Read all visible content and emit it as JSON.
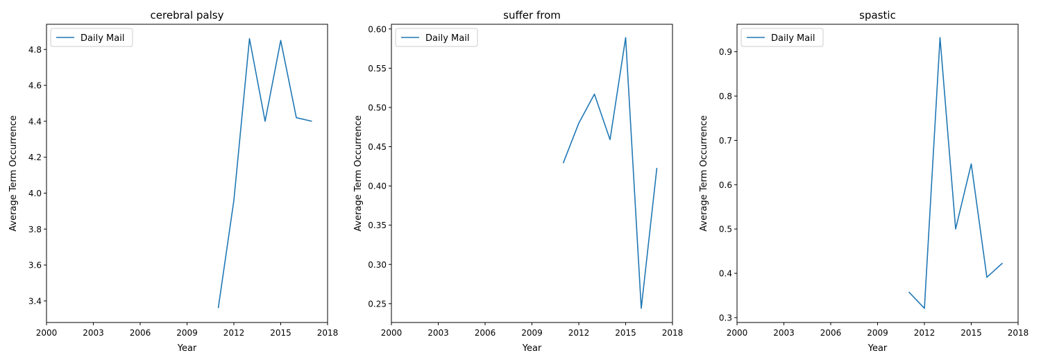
{
  "colors": {
    "series": "#1f77b4",
    "axis": "#000000",
    "legend_border": "#cccccc"
  },
  "chart_data": [
    {
      "type": "line",
      "title": "cerebral palsy",
      "xlabel": "Year",
      "ylabel": "Average Term Occurrence",
      "xlim": [
        2000,
        2018
      ],
      "ylim": [
        3.28,
        4.94
      ],
      "xticks": [
        2000,
        2003,
        2006,
        2009,
        2012,
        2015,
        2018
      ],
      "yticks": [
        3.4,
        3.6,
        3.8,
        4.0,
        4.2,
        4.4,
        4.6,
        4.8
      ],
      "ytick_labels": [
        "3.4",
        "3.6",
        "3.8",
        "4.0",
        "4.2",
        "4.4",
        "4.6",
        "4.8"
      ],
      "legend": {
        "placement": "upper-left"
      },
      "series": [
        {
          "name": "Daily Mail",
          "x": [
            2011,
            2012,
            2013,
            2014,
            2015,
            2016,
            2017
          ],
          "y": [
            3.36,
            3.96,
            4.86,
            4.4,
            4.85,
            4.42,
            4.4
          ]
        }
      ]
    },
    {
      "type": "line",
      "title": "suffer from",
      "xlabel": "Year",
      "ylabel": "Average Term Occurrence",
      "xlim": [
        2000,
        2018
      ],
      "ylim": [
        0.226,
        0.606
      ],
      "xticks": [
        2000,
        2003,
        2006,
        2009,
        2012,
        2015,
        2018
      ],
      "yticks": [
        0.25,
        0.3,
        0.35,
        0.4,
        0.45,
        0.5,
        0.55,
        0.6
      ],
      "ytick_labels": [
        "0.25",
        "0.30",
        "0.35",
        "0.40",
        "0.45",
        "0.50",
        "0.55",
        "0.60"
      ],
      "legend": {
        "placement": "upper-left"
      },
      "series": [
        {
          "name": "Daily Mail",
          "x": [
            2011,
            2012,
            2013,
            2014,
            2015,
            2016,
            2017
          ],
          "y": [
            0.429,
            0.48,
            0.517,
            0.459,
            0.589,
            0.244,
            0.423
          ]
        }
      ]
    },
    {
      "type": "line",
      "title": "spastic",
      "xlabel": "Year",
      "ylabel": "Average Term Occurrence",
      "xlim": [
        2000,
        2018
      ],
      "ylim": [
        0.289,
        0.962
      ],
      "xticks": [
        2000,
        2003,
        2006,
        2009,
        2012,
        2015,
        2018
      ],
      "yticks": [
        0.3,
        0.4,
        0.5,
        0.6,
        0.7,
        0.8,
        0.9
      ],
      "ytick_labels": [
        "0.3",
        "0.4",
        "0.5",
        "0.6",
        "0.7",
        "0.8",
        "0.9"
      ],
      "legend": {
        "placement": "upper-left"
      },
      "series": [
        {
          "name": "Daily Mail",
          "x": [
            2011,
            2012,
            2013,
            2014,
            2015,
            2016,
            2017
          ],
          "y": [
            0.358,
            0.321,
            0.932,
            0.5,
            0.647,
            0.391,
            0.423
          ]
        }
      ]
    }
  ]
}
